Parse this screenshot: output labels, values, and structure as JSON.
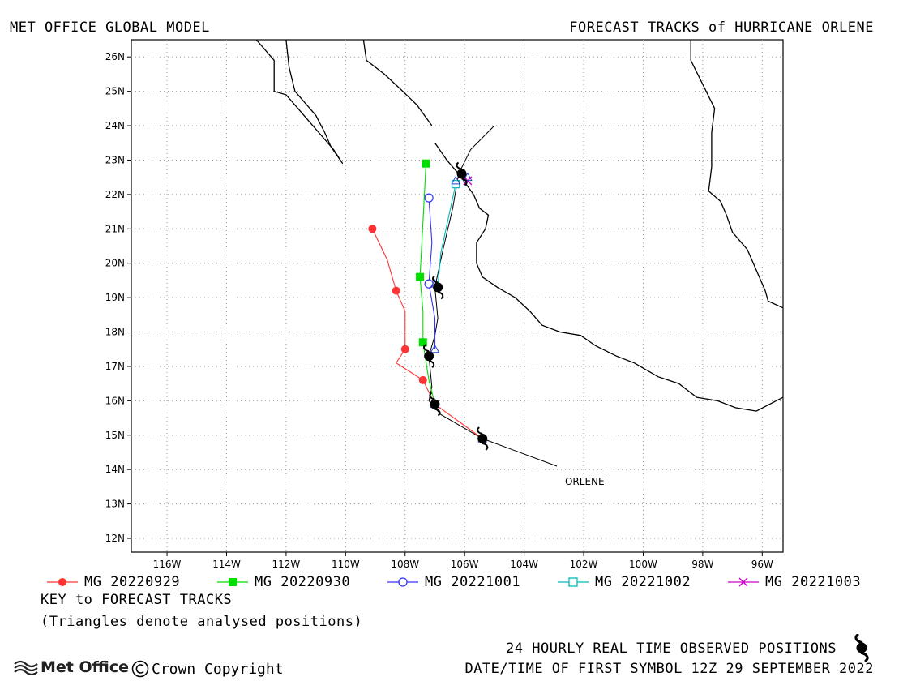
{
  "header": {
    "left_title": "MET OFFICE GLOBAL MODEL",
    "right_title": "FORECAST TRACKS of HURRICANE ORLENE"
  },
  "map": {
    "lon_range": [
      -117.2,
      -95.3
    ],
    "lat_range": [
      11.6,
      26.5
    ],
    "lon_ticks": [
      {
        "value": -116,
        "label": "116W"
      },
      {
        "value": -114,
        "label": "114W"
      },
      {
        "value": -112,
        "label": "112W"
      },
      {
        "value": -110,
        "label": "110W"
      },
      {
        "value": -108,
        "label": "108W"
      },
      {
        "value": -106,
        "label": "106W"
      },
      {
        "value": -104,
        "label": "104W"
      },
      {
        "value": -102,
        "label": "102W"
      },
      {
        "value": -100,
        "label": "100W"
      },
      {
        "value": -98,
        "label": "98W"
      },
      {
        "value": -96,
        "label": "96W"
      }
    ],
    "lat_ticks": [
      {
        "value": 12,
        "label": "12N"
      },
      {
        "value": 13,
        "label": "13N"
      },
      {
        "value": 14,
        "label": "14N"
      },
      {
        "value": 15,
        "label": "15N"
      },
      {
        "value": 16,
        "label": "16N"
      },
      {
        "value": 17,
        "label": "17N"
      },
      {
        "value": 18,
        "label": "18N"
      },
      {
        "value": 19,
        "label": "19N"
      },
      {
        "value": 20,
        "label": "20N"
      },
      {
        "value": 21,
        "label": "21N"
      },
      {
        "value": 22,
        "label": "22N"
      },
      {
        "value": 23,
        "label": "23N"
      },
      {
        "value": 24,
        "label": "24N"
      },
      {
        "value": 25,
        "label": "25N"
      },
      {
        "value": 26,
        "label": "26N"
      }
    ],
    "grid": true,
    "storm_name": "ORLENE",
    "coastlines": [
      [
        [
          -113.0,
          26.5
        ],
        [
          -112.4,
          25.9
        ],
        [
          -112.4,
          25.0
        ],
        [
          -112.0,
          24.9
        ],
        [
          -111.4,
          24.3
        ],
        [
          -110.9,
          23.8
        ],
        [
          -110.4,
          23.3
        ],
        [
          -110.1,
          22.9
        ],
        [
          -110.5,
          23.4
        ],
        [
          -110.7,
          23.8
        ],
        [
          -111.0,
          24.3
        ],
        [
          -111.3,
          24.6
        ],
        [
          -111.7,
          25.0
        ],
        [
          -111.9,
          25.7
        ],
        [
          -112.0,
          26.5
        ]
      ],
      [
        [
          -109.4,
          26.5
        ],
        [
          -109.3,
          25.9
        ],
        [
          -108.7,
          25.5
        ],
        [
          -108.2,
          25.1
        ],
        [
          -107.6,
          24.6
        ],
        [
          -107.1,
          24.0
        ]
      ],
      [
        [
          -107.0,
          23.5
        ],
        [
          -106.6,
          23.0
        ],
        [
          -106.2,
          22.6
        ],
        [
          -105.7,
          22.0
        ],
        [
          -105.5,
          21.6
        ],
        [
          -105.2,
          21.4
        ],
        [
          -105.3,
          21.0
        ],
        [
          -105.6,
          20.6
        ],
        [
          -105.6,
          20.0
        ],
        [
          -105.4,
          19.6
        ],
        [
          -104.9,
          19.3
        ],
        [
          -104.3,
          19.0
        ],
        [
          -103.8,
          18.6
        ],
        [
          -103.4,
          18.2
        ],
        [
          -102.8,
          18.0
        ],
        [
          -102.1,
          17.9
        ],
        [
          -101.6,
          17.6
        ],
        [
          -100.9,
          17.3
        ],
        [
          -100.3,
          17.1
        ],
        [
          -99.5,
          16.7
        ],
        [
          -98.8,
          16.5
        ],
        [
          -98.2,
          16.1
        ],
        [
          -97.5,
          16.0
        ],
        [
          -96.9,
          15.8
        ],
        [
          -96.2,
          15.7
        ],
        [
          -95.3,
          16.1
        ]
      ],
      [
        [
          -98.4,
          26.5
        ],
        [
          -98.4,
          25.9
        ],
        [
          -98.0,
          25.2
        ],
        [
          -97.6,
          24.5
        ],
        [
          -97.7,
          23.8
        ],
        [
          -97.7,
          22.8
        ],
        [
          -97.8,
          22.1
        ],
        [
          -97.4,
          21.8
        ],
        [
          -97.2,
          21.4
        ],
        [
          -97.0,
          20.9
        ],
        [
          -96.5,
          20.4
        ],
        [
          -96.2,
          19.8
        ],
        [
          -95.9,
          19.2
        ],
        [
          -95.8,
          18.9
        ],
        [
          -95.3,
          18.7
        ]
      ]
    ],
    "observed_track": [
      [
        -102.9,
        14.1
      ],
      [
        -105.4,
        14.9
      ],
      [
        -106.8,
        15.6
      ],
      [
        -107.2,
        16.0
      ],
      [
        -107.1,
        16.4
      ],
      [
        -107.2,
        17.3
      ],
      [
        -107.0,
        17.9
      ],
      [
        -106.9,
        18.4
      ],
      [
        -107.0,
        19.3
      ],
      [
        -106.7,
        20.5
      ],
      [
        -106.4,
        21.6
      ],
      [
        -106.2,
        22.6
      ],
      [
        -105.8,
        23.3
      ],
      [
        -105.0,
        24.0
      ]
    ],
    "hurricane_symbols": [
      [
        -105.4,
        14.9
      ],
      [
        -107.0,
        15.9
      ],
      [
        -107.2,
        17.3
      ],
      [
        -106.9,
        19.3
      ],
      [
        -106.1,
        22.6
      ]
    ],
    "observed_label_anchor": [
      -102.9,
      14.1
    ]
  },
  "chart_data": {
    "type": "scatter",
    "title": "FORECAST TRACKS of HURRICANE ORLENE",
    "xlabel": "",
    "ylabel": "",
    "xlim": [
      -117.2,
      -95.3
    ],
    "ylim": [
      11.6,
      26.5
    ],
    "series": [
      {
        "name": "MG 20220929",
        "color": "#ff3333",
        "marker": "circle-filled",
        "points": [
          [
            -105.4,
            14.9
          ],
          [
            -107.4,
            16.6
          ],
          [
            -108.0,
            17.5
          ],
          [
            -108.3,
            19.2
          ],
          [
            -109.1,
            21.0
          ]
        ],
        "path": [
          [
            -105.4,
            14.9
          ],
          [
            -107.0,
            15.9
          ],
          [
            -107.4,
            16.6
          ],
          [
            -108.3,
            17.1
          ],
          [
            -108.0,
            17.5
          ],
          [
            -108.0,
            18.6
          ],
          [
            -108.3,
            19.2
          ],
          [
            -108.6,
            20.1
          ],
          [
            -109.1,
            21.0
          ]
        ]
      },
      {
        "name": "MG 20220930",
        "color": "#00dd00",
        "marker": "square-filled",
        "points": [
          [
            -107.4,
            17.7
          ],
          [
            -107.5,
            19.6
          ],
          [
            -107.3,
            22.9
          ]
        ],
        "path": [
          [
            -107.0,
            15.9
          ],
          [
            -107.2,
            16.6
          ],
          [
            -107.4,
            17.7
          ],
          [
            -107.4,
            18.6
          ],
          [
            -107.5,
            19.6
          ],
          [
            -107.4,
            21.2
          ],
          [
            -107.3,
            22.9
          ]
        ]
      },
      {
        "name": "MG 20221001",
        "color": "#3333ff",
        "marker": "circle-open",
        "points": [
          [
            -107.2,
            19.4
          ],
          [
            -107.2,
            21.9
          ]
        ],
        "path": [
          [
            -107.0,
            17.5
          ],
          [
            -107.0,
            18.4
          ],
          [
            -107.2,
            19.4
          ],
          [
            -107.1,
            20.6
          ],
          [
            -107.2,
            21.9
          ]
        ]
      },
      {
        "name": "MG 20221002",
        "color": "#00bbbb",
        "marker": "square-open",
        "points": [
          [
            -106.3,
            22.3
          ]
        ],
        "path": [
          [
            -106.9,
            19.3
          ],
          [
            -106.8,
            20.3
          ],
          [
            -106.5,
            21.5
          ],
          [
            -106.3,
            22.3
          ]
        ]
      },
      {
        "name": "MG 20221003",
        "color": "#cc00cc",
        "marker": "x",
        "points": [
          [
            -105.9,
            22.4
          ]
        ],
        "path": [
          [
            -106.1,
            22.6
          ],
          [
            -105.9,
            22.4
          ]
        ]
      }
    ],
    "analysed_positions": [
      [
        -105.4,
        14.9
      ],
      [
        -107.0,
        15.9
      ],
      [
        -107.0,
        17.5
      ],
      [
        -107.0,
        19.4
      ],
      [
        -106.3,
        22.4
      ],
      [
        -105.9,
        22.5
      ]
    ]
  },
  "legend": {
    "items": [
      {
        "label": "MG 20220929",
        "color": "#ff3333",
        "marker": "circle-filled"
      },
      {
        "label": "MG 20220930",
        "color": "#00dd00",
        "marker": "square-filled"
      },
      {
        "label": "MG 20221001",
        "color": "#3333ff",
        "marker": "circle-open"
      },
      {
        "label": "MG 20221002",
        "color": "#00bbbb",
        "marker": "square-open"
      },
      {
        "label": "MG 20221003",
        "color": "#cc00cc",
        "marker": "x"
      }
    ],
    "key_title": "KEY to FORECAST TRACKS",
    "key_note": "(Triangles denote analysed positions)"
  },
  "footer": {
    "observed_label": "24 HOURLY REAL TIME OBSERVED POSITIONS",
    "first_symbol": "DATE/TIME OF FIRST SYMBOL 12Z 29 SEPTEMBER 2022",
    "logo_text": "Met Office",
    "copyright": "Crown Copyright"
  }
}
